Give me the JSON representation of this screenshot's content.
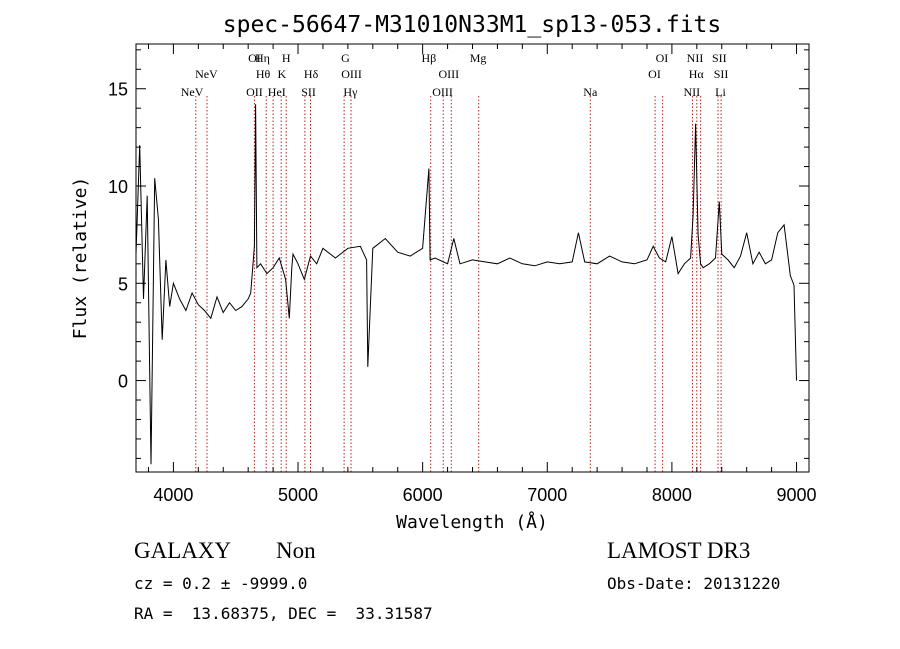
{
  "chart_data": {
    "type": "line",
    "title": "spec-56647-M31010N33M1_sp13-053.fits",
    "xlabel": "Wavelength (Å)",
    "ylabel": "Flux (relative)",
    "xlim": [
      3700,
      9100
    ],
    "ylim": [
      -4.7,
      17.3
    ],
    "xticks": [
      4000,
      5000,
      6000,
      7000,
      8000,
      9000
    ],
    "yticks": [
      0,
      5,
      10,
      15
    ],
    "grid": false,
    "series": [
      {
        "name": "spectrum",
        "x": [
          3700,
          3730,
          3760,
          3790,
          3820,
          3850,
          3880,
          3910,
          3940,
          3970,
          4000,
          4050,
          4100,
          4150,
          4200,
          4250,
          4300,
          4350,
          4400,
          4450,
          4500,
          4550,
          4600,
          4620,
          4650,
          4660,
          4670,
          4700,
          4750,
          4800,
          4850,
          4900,
          4930,
          4950,
          4960,
          5000,
          5050,
          5100,
          5150,
          5200,
          5300,
          5400,
          5500,
          5550,
          5560,
          5600,
          5700,
          5800,
          5900,
          6000,
          6050,
          6060,
          6100,
          6200,
          6250,
          6300,
          6400,
          6500,
          6600,
          6700,
          6800,
          6900,
          7000,
          7100,
          7200,
          7250,
          7300,
          7400,
          7500,
          7600,
          7700,
          7800,
          7850,
          7900,
          7950,
          8000,
          8050,
          8100,
          8150,
          8170,
          8190,
          8210,
          8230,
          8250,
          8300,
          8350,
          8380,
          8400,
          8450,
          8500,
          8550,
          8600,
          8650,
          8700,
          8750,
          8800,
          8850,
          8900,
          8950,
          8980,
          9000
        ],
        "y": [
          6.5,
          12.1,
          4.2,
          9.5,
          -4.3,
          10.4,
          8.3,
          2.1,
          6.2,
          3.8,
          5.0,
          4.2,
          3.6,
          4.5,
          3.9,
          3.6,
          3.2,
          4.3,
          3.5,
          4.0,
          3.6,
          3.8,
          4.2,
          4.5,
          6.9,
          14.2,
          5.8,
          6.0,
          5.5,
          5.8,
          6.3,
          5.2,
          3.2,
          5.8,
          6.5,
          6.0,
          5.2,
          6.4,
          6.0,
          6.8,
          6.3,
          6.8,
          6.9,
          6.2,
          0.7,
          6.8,
          7.3,
          6.6,
          6.4,
          6.8,
          10.9,
          6.2,
          6.3,
          6.0,
          7.3,
          6.0,
          6.2,
          6.1,
          6.0,
          6.3,
          6.0,
          5.9,
          6.1,
          6.0,
          6.1,
          7.6,
          6.1,
          6.0,
          6.4,
          6.1,
          6.0,
          6.2,
          6.9,
          6.3,
          6.1,
          7.4,
          5.5,
          6.0,
          6.3,
          8.5,
          13.2,
          7.5,
          6.0,
          5.8,
          6.0,
          6.3,
          9.2,
          6.5,
          6.2,
          5.8,
          6.4,
          7.6,
          6.0,
          6.6,
          6.0,
          6.2,
          7.6,
          8.0,
          5.4,
          4.9,
          0.0
        ]
      }
    ],
    "line_annotations": {
      "row1": [
        {
          "label": "OI",
          "x": 4650
        },
        {
          "label": "Hη",
          "x": 4715
        },
        {
          "label": "H",
          "x": 4905
        },
        {
          "label": "G",
          "x": 5380
        },
        {
          "label": "Hβ",
          "x": 6050
        },
        {
          "label": "Mg",
          "x": 6445
        },
        {
          "label": "OI",
          "x": 7920
        },
        {
          "label": "NII",
          "x": 8185
        },
        {
          "label": "SII",
          "x": 8380
        }
      ],
      "row2": [
        {
          "label": "NeV",
          "x": 4265
        },
        {
          "label": "Hθ",
          "x": 4720
        },
        {
          "label": "K",
          "x": 4870
        },
        {
          "label": "Hδ",
          "x": 5105
        },
        {
          "label": "OIII",
          "x": 5430
        },
        {
          "label": "OIII",
          "x": 6210
        },
        {
          "label": "OI",
          "x": 7860
        },
        {
          "label": "Hα",
          "x": 8195
        },
        {
          "label": "SII",
          "x": 8395
        }
      ],
      "row3": [
        {
          "label": "NeV",
          "x": 4150
        },
        {
          "label": "OII",
          "x": 4650
        },
        {
          "label": "HeI",
          "x": 4830
        },
        {
          "label": "SII",
          "x": 5085
        },
        {
          "label": "Hγ",
          "x": 5420
        },
        {
          "label": "OIII",
          "x": 6160
        },
        {
          "label": "Na",
          "x": 7345
        },
        {
          "label": "NII",
          "x": 8160
        },
        {
          "label": "Li",
          "x": 8390
        }
      ],
      "line_positions": [
        4180,
        4270,
        4650,
        4745,
        4800,
        4865,
        4905,
        5055,
        5100,
        5370,
        5425,
        6065,
        6165,
        6230,
        6450,
        7345,
        7865,
        7925,
        8165,
        8200,
        8230,
        8370,
        8395
      ]
    }
  },
  "info": {
    "class_label": "GALAXY",
    "subclass": "Non",
    "survey": "LAMOST DR3",
    "cz": "cz = 0.2 ± -9999.0",
    "obs_date": "Obs-Date: 20131220",
    "coords": "RA =  13.68375, DEC =  33.31587"
  },
  "colors": {
    "line": "#000000",
    "marker": "#b22222"
  }
}
